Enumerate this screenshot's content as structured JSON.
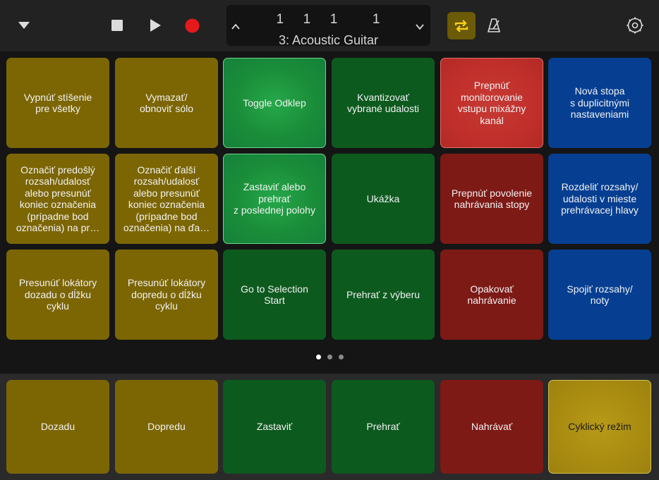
{
  "toolbar": {
    "lcd_position": [
      "1",
      "1",
      "1",
      "1"
    ],
    "lcd_track": "3: Acoustic Guitar"
  },
  "colors": {
    "record": "#e5191b",
    "cycle_active_bg": "#6b5a06",
    "cycle_icon": "#ffd21c"
  },
  "pages": {
    "count": 3,
    "current": 1
  },
  "pads": [
    {
      "label": "Vypnúť stíšenie\npre všetky",
      "color": "yellow"
    },
    {
      "label": "Vymazať/\nobnoviť sólo",
      "color": "yellow"
    },
    {
      "label": "Toggle Odklep",
      "color": "green-lit"
    },
    {
      "label": "Kvantizovať\nvybrané udalosti",
      "color": "green"
    },
    {
      "label": "Prepnúť\nmonitorovanie\nvstupu mixážny\nkanál",
      "color": "red-lit"
    },
    {
      "label": "Nová stopa\ns duplicitnými\nnastaveniami",
      "color": "blue"
    },
    {
      "label": "Označiť predošlý\nrozsah/udalosť\nalebo presunúť\nkoniec označenia\n(prípadne bod\noznačenia) na pr…",
      "color": "yellow"
    },
    {
      "label": "Označiť ďalší\nrozsah/udalosť\nalebo presunúť\nkoniec označenia\n(prípadne bod\noznačenia) na ďa…",
      "color": "yellow"
    },
    {
      "label": "Zastaviť alebo\nprehrať\nz poslednej polohy",
      "color": "green-lit"
    },
    {
      "label": "Ukážka",
      "color": "green"
    },
    {
      "label": "Prepnúť povolenie\nnahrávania stopy",
      "color": "red"
    },
    {
      "label": "Rozdeliť rozsahy/\nudalosti v mieste\nprehrávacej hlavy",
      "color": "blue"
    },
    {
      "label": "Presunúť lokátory\ndozadu o dĺžku\ncyklu",
      "color": "yellow"
    },
    {
      "label": "Presunúť lokátory\ndopredu o dĺžku\ncyklu",
      "color": "yellow"
    },
    {
      "label": "Go to Selection\nStart",
      "color": "green"
    },
    {
      "label": "Prehrať z výberu",
      "color": "green"
    },
    {
      "label": "Opakovať\nnahrávanie",
      "color": "red"
    },
    {
      "label": "Spojiť rozsahy/\nnoty",
      "color": "blue"
    }
  ],
  "bottom_pads": [
    {
      "label": "Dozadu",
      "color": "yellow"
    },
    {
      "label": "Dopredu",
      "color": "yellow"
    },
    {
      "label": "Zastaviť",
      "color": "green"
    },
    {
      "label": "Prehrať",
      "color": "green"
    },
    {
      "label": "Nahrávať",
      "color": "red"
    },
    {
      "label": "Cyklický režim",
      "color": "yellow-lit"
    }
  ]
}
